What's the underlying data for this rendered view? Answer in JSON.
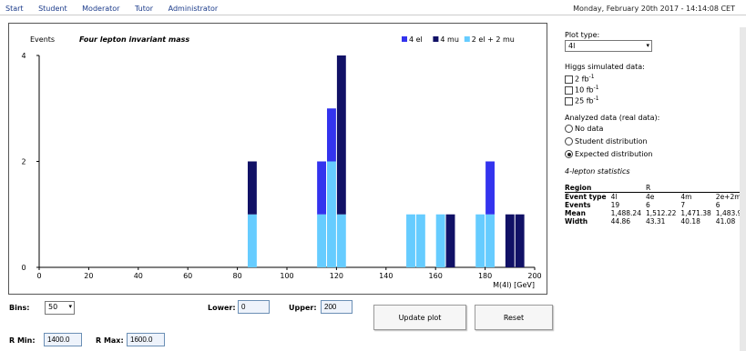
{
  "nav": [
    "Start",
    "Student",
    "Moderator",
    "Tutor",
    "Administrator"
  ],
  "datetime": "Monday, February 20th 2017 - 14:14:08 CET",
  "chart_data": {
    "type": "bar",
    "stacked": true,
    "title": "Four lepton invariant mass",
    "ylabel": "Events",
    "xlabel": "M(4l) [GeV]",
    "xlim": [
      0,
      200
    ],
    "ylim": [
      0,
      4
    ],
    "xticks": [
      0,
      20,
      40,
      60,
      80,
      100,
      120,
      140,
      160,
      180,
      200
    ],
    "yticks": [
      0,
      2,
      4
    ],
    "bin_width": 4,
    "bin_starts": [
      84,
      112,
      116,
      120,
      148,
      152,
      160,
      164,
      176,
      180,
      188,
      192
    ],
    "series": [
      {
        "name": "2 el + 2 mu",
        "color": "#66ccff",
        "values": [
          1,
          1,
          2,
          1,
          1,
          1,
          1,
          0,
          1,
          1,
          0,
          0
        ]
      },
      {
        "name": "4 el",
        "color": "#3333ee",
        "values": [
          0,
          1,
          1,
          0,
          0,
          0,
          0,
          0,
          0,
          1,
          0,
          0
        ]
      },
      {
        "name": "4 mu",
        "color": "#111166",
        "values": [
          1,
          0,
          0,
          3,
          0,
          0,
          0,
          1,
          0,
          0,
          1,
          1
        ]
      }
    ],
    "legend_position": "top-right"
  },
  "panel": {
    "plot_type_label": "Plot type:",
    "plot_type_value": "4l",
    "higgs_label": "Higgs simulated data:",
    "higgs_options": [
      {
        "num": "2",
        "unit": "fb",
        "sup": "-1"
      },
      {
        "num": "10",
        "unit": "fb",
        "sup": "-1"
      },
      {
        "num": "25",
        "unit": "fb",
        "sup": "-1"
      }
    ],
    "analyzed_label": "Analyzed data (real data):",
    "analyzed_options": [
      "No data",
      "Student distribution",
      "Expected distribution"
    ],
    "analyzed_selected": 2,
    "stats_title": "4-lepton statistics",
    "stats": {
      "header": [
        "Region",
        "",
        "R",
        "",
        ""
      ],
      "rows": [
        [
          "Event type",
          "4l",
          "4e",
          "4m",
          "2e+2m"
        ],
        [
          "Events",
          "19",
          "6",
          "7",
          "6"
        ],
        [
          "Mean",
          "1,488.24",
          "1,512.22",
          "1,471.38",
          "1,483.9"
        ],
        [
          "Width",
          "44.86",
          "43.31",
          "40.18",
          "41.08"
        ]
      ]
    }
  },
  "controls": {
    "bins_label": "Bins:",
    "bins_value": "50",
    "lower_label": "Lower:",
    "lower_value": "0",
    "upper_label": "Upper:",
    "upper_value": "200",
    "update_label": "Update plot",
    "reset_label": "Reset",
    "rmin_label": "R Min:",
    "rmin_value": "1400.0",
    "rmax_label": "R Max:",
    "rmax_value": "1600.0"
  }
}
